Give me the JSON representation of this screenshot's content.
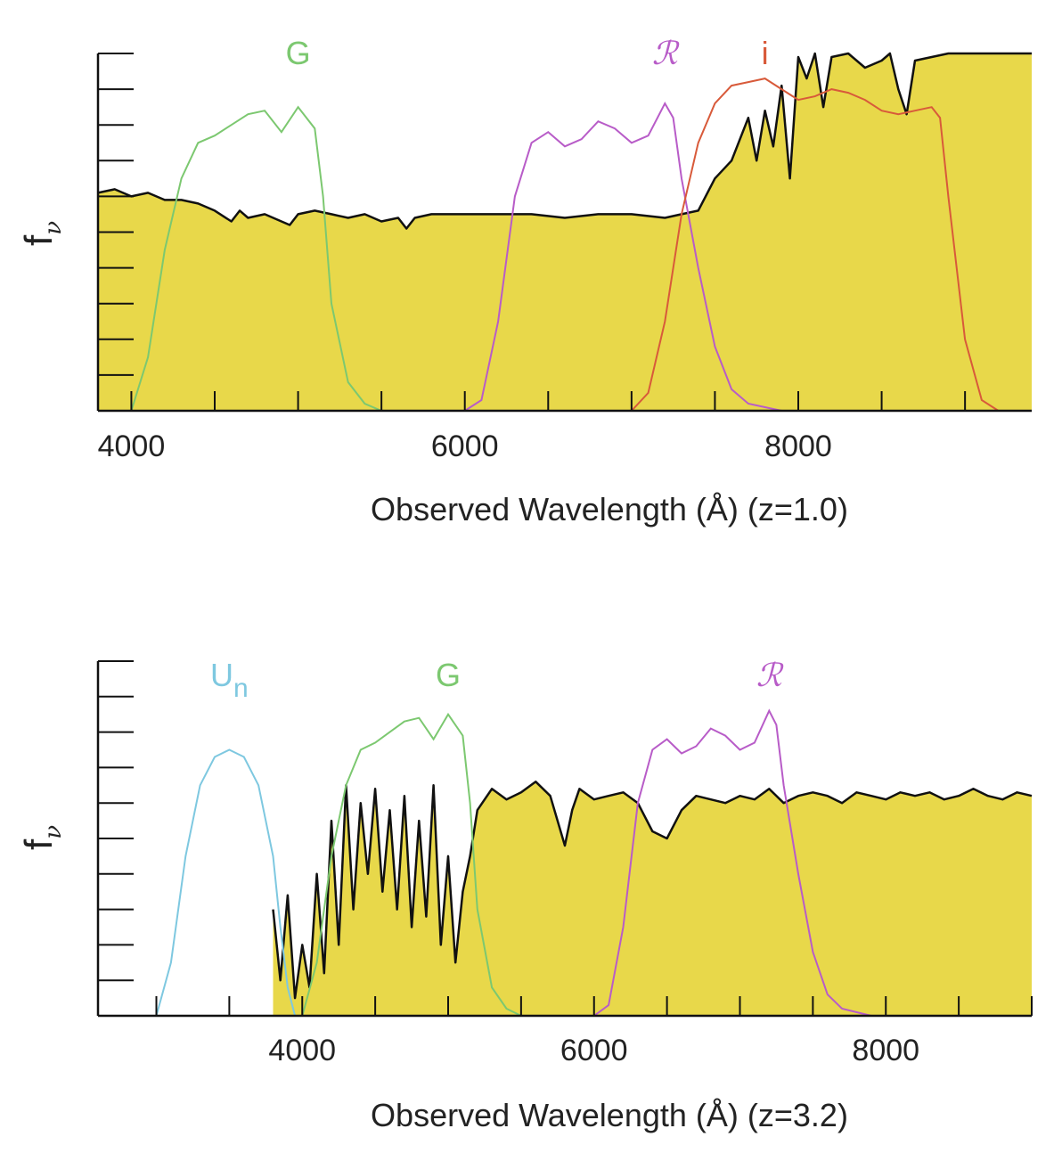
{
  "chart_data": [
    {
      "type": "area",
      "xlabel": "Observed Wavelength (Å) (z=1.0)",
      "ylabel": "f",
      "ylabel_sub": "ν",
      "xlim": [
        3800,
        9400
      ],
      "ylim": [
        0,
        10
      ],
      "xticks": [
        4000,
        6000,
        8000
      ],
      "minor_xtick_step": 500,
      "yticks_count": 10,
      "fill_color": "#e8d84a",
      "spectrum": {
        "name": "",
        "x": [
          3800,
          3900,
          4000,
          4100,
          4200,
          4300,
          4400,
          4500,
          4600,
          4650,
          4700,
          4800,
          4900,
          4950,
          5000,
          5100,
          5200,
          5300,
          5400,
          5500,
          5600,
          5650,
          5700,
          5800,
          6000,
          6200,
          6400,
          6600,
          6800,
          7000,
          7200,
          7300,
          7400,
          7500,
          7600,
          7700,
          7750,
          7800,
          7850,
          7900,
          7950,
          8000,
          8050,
          8100,
          8150,
          8200,
          8300,
          8400,
          8500,
          8550,
          8600,
          8650,
          8700,
          8800,
          8900,
          9000,
          9100,
          9200,
          9300,
          9400
        ],
        "values": [
          6.1,
          6.2,
          6.0,
          6.1,
          5.9,
          5.9,
          5.8,
          5.6,
          5.3,
          5.6,
          5.4,
          5.5,
          5.3,
          5.2,
          5.5,
          5.6,
          5.5,
          5.4,
          5.5,
          5.3,
          5.4,
          5.1,
          5.4,
          5.5,
          5.5,
          5.5,
          5.5,
          5.4,
          5.5,
          5.5,
          5.4,
          5.5,
          5.6,
          6.5,
          7.0,
          8.2,
          7.0,
          8.4,
          7.4,
          9.1,
          6.5,
          9.9,
          9.3,
          10.0,
          8.5,
          9.9,
          10.0,
          9.6,
          9.8,
          10.0,
          9.0,
          8.3,
          9.8,
          9.9,
          10.0,
          10.0,
          10.0,
          10.0,
          10.0,
          10.0
        ]
      },
      "filters": [
        {
          "name": "G",
          "color": "#7cc870",
          "x": [
            4000,
            4100,
            4200,
            4300,
            4400,
            4500,
            4600,
            4700,
            4800,
            4900,
            5000,
            5100,
            5150,
            5200,
            5300,
            5400,
            5500,
            5600
          ],
          "values": [
            0,
            1.5,
            4.5,
            6.5,
            7.5,
            7.7,
            8.0,
            8.3,
            8.4,
            7.8,
            8.5,
            7.9,
            6.0,
            3.0,
            0.8,
            0.2,
            0,
            0
          ]
        },
        {
          "name": "ℛ",
          "color": "#b85cc8",
          "x": [
            6000,
            6100,
            6200,
            6300,
            6400,
            6500,
            6600,
            6700,
            6800,
            6900,
            7000,
            7100,
            7200,
            7250,
            7300,
            7400,
            7500,
            7600,
            7700,
            7800,
            7900,
            8000
          ],
          "values": [
            0,
            0.3,
            2.5,
            6.0,
            7.5,
            7.8,
            7.4,
            7.6,
            8.1,
            7.9,
            7.5,
            7.7,
            8.6,
            8.2,
            6.5,
            4.0,
            1.8,
            0.6,
            0.2,
            0.1,
            0,
            0
          ]
        },
        {
          "name": "i",
          "color": "#d85a3a",
          "x": [
            7000,
            7100,
            7200,
            7300,
            7400,
            7500,
            7600,
            7700,
            7800,
            7900,
            8000,
            8100,
            8200,
            8300,
            8400,
            8500,
            8600,
            8700,
            8800,
            8850,
            8900,
            9000,
            9100,
            9200
          ],
          "values": [
            0,
            0.5,
            2.5,
            5.5,
            7.5,
            8.6,
            9.1,
            9.2,
            9.3,
            9.0,
            8.7,
            8.8,
            9.0,
            8.9,
            8.7,
            8.4,
            8.3,
            8.4,
            8.5,
            8.2,
            6.0,
            2.0,
            0.3,
            0
          ]
        }
      ]
    },
    {
      "type": "area",
      "xlabel": "Observed Wavelength (Å) (z=3.2)",
      "ylabel": "f",
      "ylabel_sub": "ν",
      "xlim": [
        2600,
        9000
      ],
      "ylim": [
        0,
        10
      ],
      "xticks": [
        4000,
        6000,
        8000
      ],
      "minor_xtick_step": 500,
      "yticks_count": 10,
      "fill_color": "#e8d84a",
      "spectrum": {
        "name": "",
        "x": [
          3800,
          3850,
          3900,
          3950,
          4000,
          4050,
          4100,
          4150,
          4200,
          4250,
          4300,
          4350,
          4400,
          4450,
          4500,
          4550,
          4600,
          4650,
          4700,
          4750,
          4800,
          4850,
          4900,
          4950,
          5000,
          5050,
          5100,
          5150,
          5200,
          5300,
          5400,
          5500,
          5600,
          5700,
          5800,
          5850,
          5900,
          6000,
          6100,
          6200,
          6300,
          6400,
          6500,
          6600,
          6700,
          6800,
          6900,
          7000,
          7100,
          7200,
          7300,
          7400,
          7500,
          7600,
          7700,
          7800,
          7900,
          8000,
          8100,
          8200,
          8300,
          8400,
          8500,
          8600,
          8700,
          8800,
          8900,
          9000
        ],
        "values": [
          3.0,
          1.0,
          3.4,
          0.5,
          2.0,
          0.8,
          4.0,
          1.2,
          5.5,
          2.0,
          6.5,
          3.0,
          6.0,
          4.0,
          6.4,
          3.5,
          5.8,
          3.0,
          6.2,
          2.5,
          5.5,
          2.8,
          6.5,
          2.0,
          4.5,
          1.5,
          3.5,
          4.5,
          5.8,
          6.4,
          6.1,
          6.3,
          6.6,
          6.2,
          4.8,
          5.8,
          6.4,
          6.1,
          6.2,
          6.3,
          6.0,
          5.2,
          5.0,
          5.8,
          6.2,
          6.1,
          6.0,
          6.2,
          6.1,
          6.4,
          6.0,
          6.2,
          6.3,
          6.2,
          6.0,
          6.3,
          6.2,
          6.1,
          6.3,
          6.2,
          6.3,
          6.1,
          6.2,
          6.4,
          6.2,
          6.1,
          6.3,
          6.2
        ]
      },
      "filters": [
        {
          "name": "Un",
          "label_main": "U",
          "label_sub": "n",
          "color": "#7ec8e0",
          "x": [
            3000,
            3100,
            3200,
            3300,
            3400,
            3500,
            3600,
            3700,
            3800,
            3850,
            3900,
            3950
          ],
          "values": [
            0,
            1.5,
            4.5,
            6.5,
            7.3,
            7.5,
            7.3,
            6.5,
            4.5,
            2.5,
            0.8,
            0
          ]
        },
        {
          "name": "G",
          "color": "#7cc870",
          "x": [
            4000,
            4100,
            4200,
            4300,
            4400,
            4500,
            4600,
            4700,
            4800,
            4900,
            5000,
            5100,
            5150,
            5200,
            5300,
            5400,
            5500,
            5600
          ],
          "values": [
            0,
            1.5,
            4.5,
            6.5,
            7.5,
            7.7,
            8.0,
            8.3,
            8.4,
            7.8,
            8.5,
            7.9,
            6.0,
            3.0,
            0.8,
            0.2,
            0,
            0
          ]
        },
        {
          "name": "ℛ",
          "color": "#b85cc8",
          "x": [
            6000,
            6100,
            6200,
            6300,
            6400,
            6500,
            6600,
            6700,
            6800,
            6900,
            7000,
            7100,
            7200,
            7250,
            7300,
            7400,
            7500,
            7600,
            7700,
            7800,
            7900,
            8000
          ],
          "values": [
            0,
            0.3,
            2.5,
            6.0,
            7.5,
            7.8,
            7.4,
            7.6,
            8.1,
            7.9,
            7.5,
            7.7,
            8.6,
            8.2,
            6.5,
            4.0,
            1.8,
            0.6,
            0.2,
            0.1,
            0,
            0
          ]
        }
      ]
    }
  ]
}
